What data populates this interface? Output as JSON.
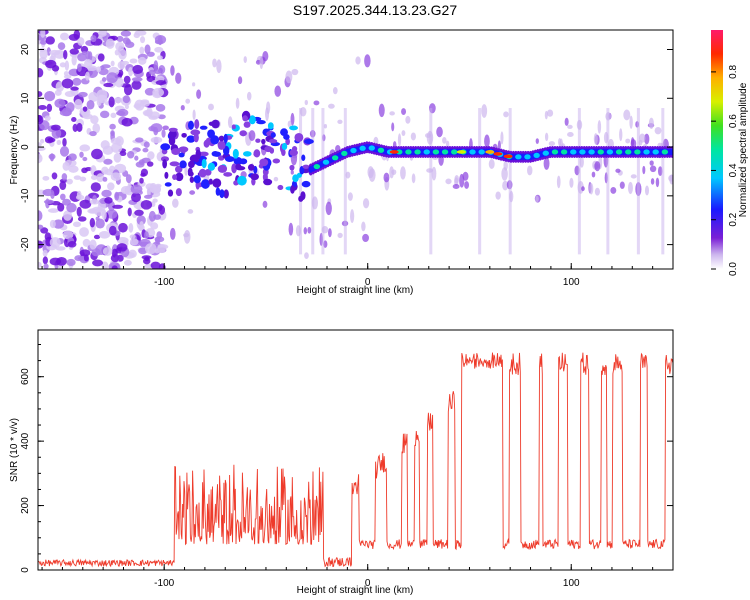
{
  "title": "S197.2025.344.13.23.G27",
  "chart_data": [
    {
      "type": "heatmap",
      "xlabel": "Height of straight line (km)",
      "ylabel": "Frequency (Hz)",
      "xlim": [
        -162,
        150
      ],
      "ylim": [
        -25,
        24
      ],
      "xticks": [
        -100,
        0,
        100
      ],
      "yticks": [
        -20,
        -10,
        0,
        10,
        20
      ],
      "colorbar": {
        "label": "Normalized spectral amplitude",
        "range": [
          0,
          0.97
        ],
        "ticks": [
          0.0,
          0.2,
          0.4,
          0.6,
          0.8
        ]
      },
      "ridge": {
        "description_points_x": [
          -100,
          -90,
          -80,
          -70,
          -60,
          -50,
          -40,
          -30,
          -20,
          -10,
          0,
          10,
          20,
          30,
          40,
          50,
          60,
          70,
          80,
          90,
          100,
          110,
          120,
          130,
          140,
          150
        ],
        "frequency_hz": [
          -3,
          -2,
          -1,
          -3,
          0,
          -1,
          -2,
          -5,
          -3,
          -1,
          0,
          -1,
          -1,
          -1,
          -1,
          -1,
          -1,
          -2,
          -2,
          -1,
          -1,
          -1,
          -1,
          -1,
          -1,
          -1
        ]
      }
    },
    {
      "type": "line",
      "xlabel": "Height of straight line (km)",
      "ylabel": "SNR (10 * v/v)",
      "xlim": [
        -162,
        150
      ],
      "ylim": [
        0,
        745
      ],
      "xticks": [
        -100,
        0,
        100
      ],
      "yticks": [
        0,
        200,
        400,
        600
      ],
      "color": "#ee3b2b",
      "regimes": [
        {
          "x_start": -162,
          "x_end": -95,
          "baseline": 22,
          "noise": 10
        },
        {
          "x_start": -95,
          "x_end": -22,
          "baseline": 80,
          "noise": 110
        },
        {
          "x_start": -22,
          "x_end": -8,
          "baseline": 25,
          "noise": 15
        },
        {
          "x_start": -8,
          "x_end": 150,
          "low": 80,
          "high_start": 250,
          "high_end": 640
        }
      ]
    }
  ]
}
